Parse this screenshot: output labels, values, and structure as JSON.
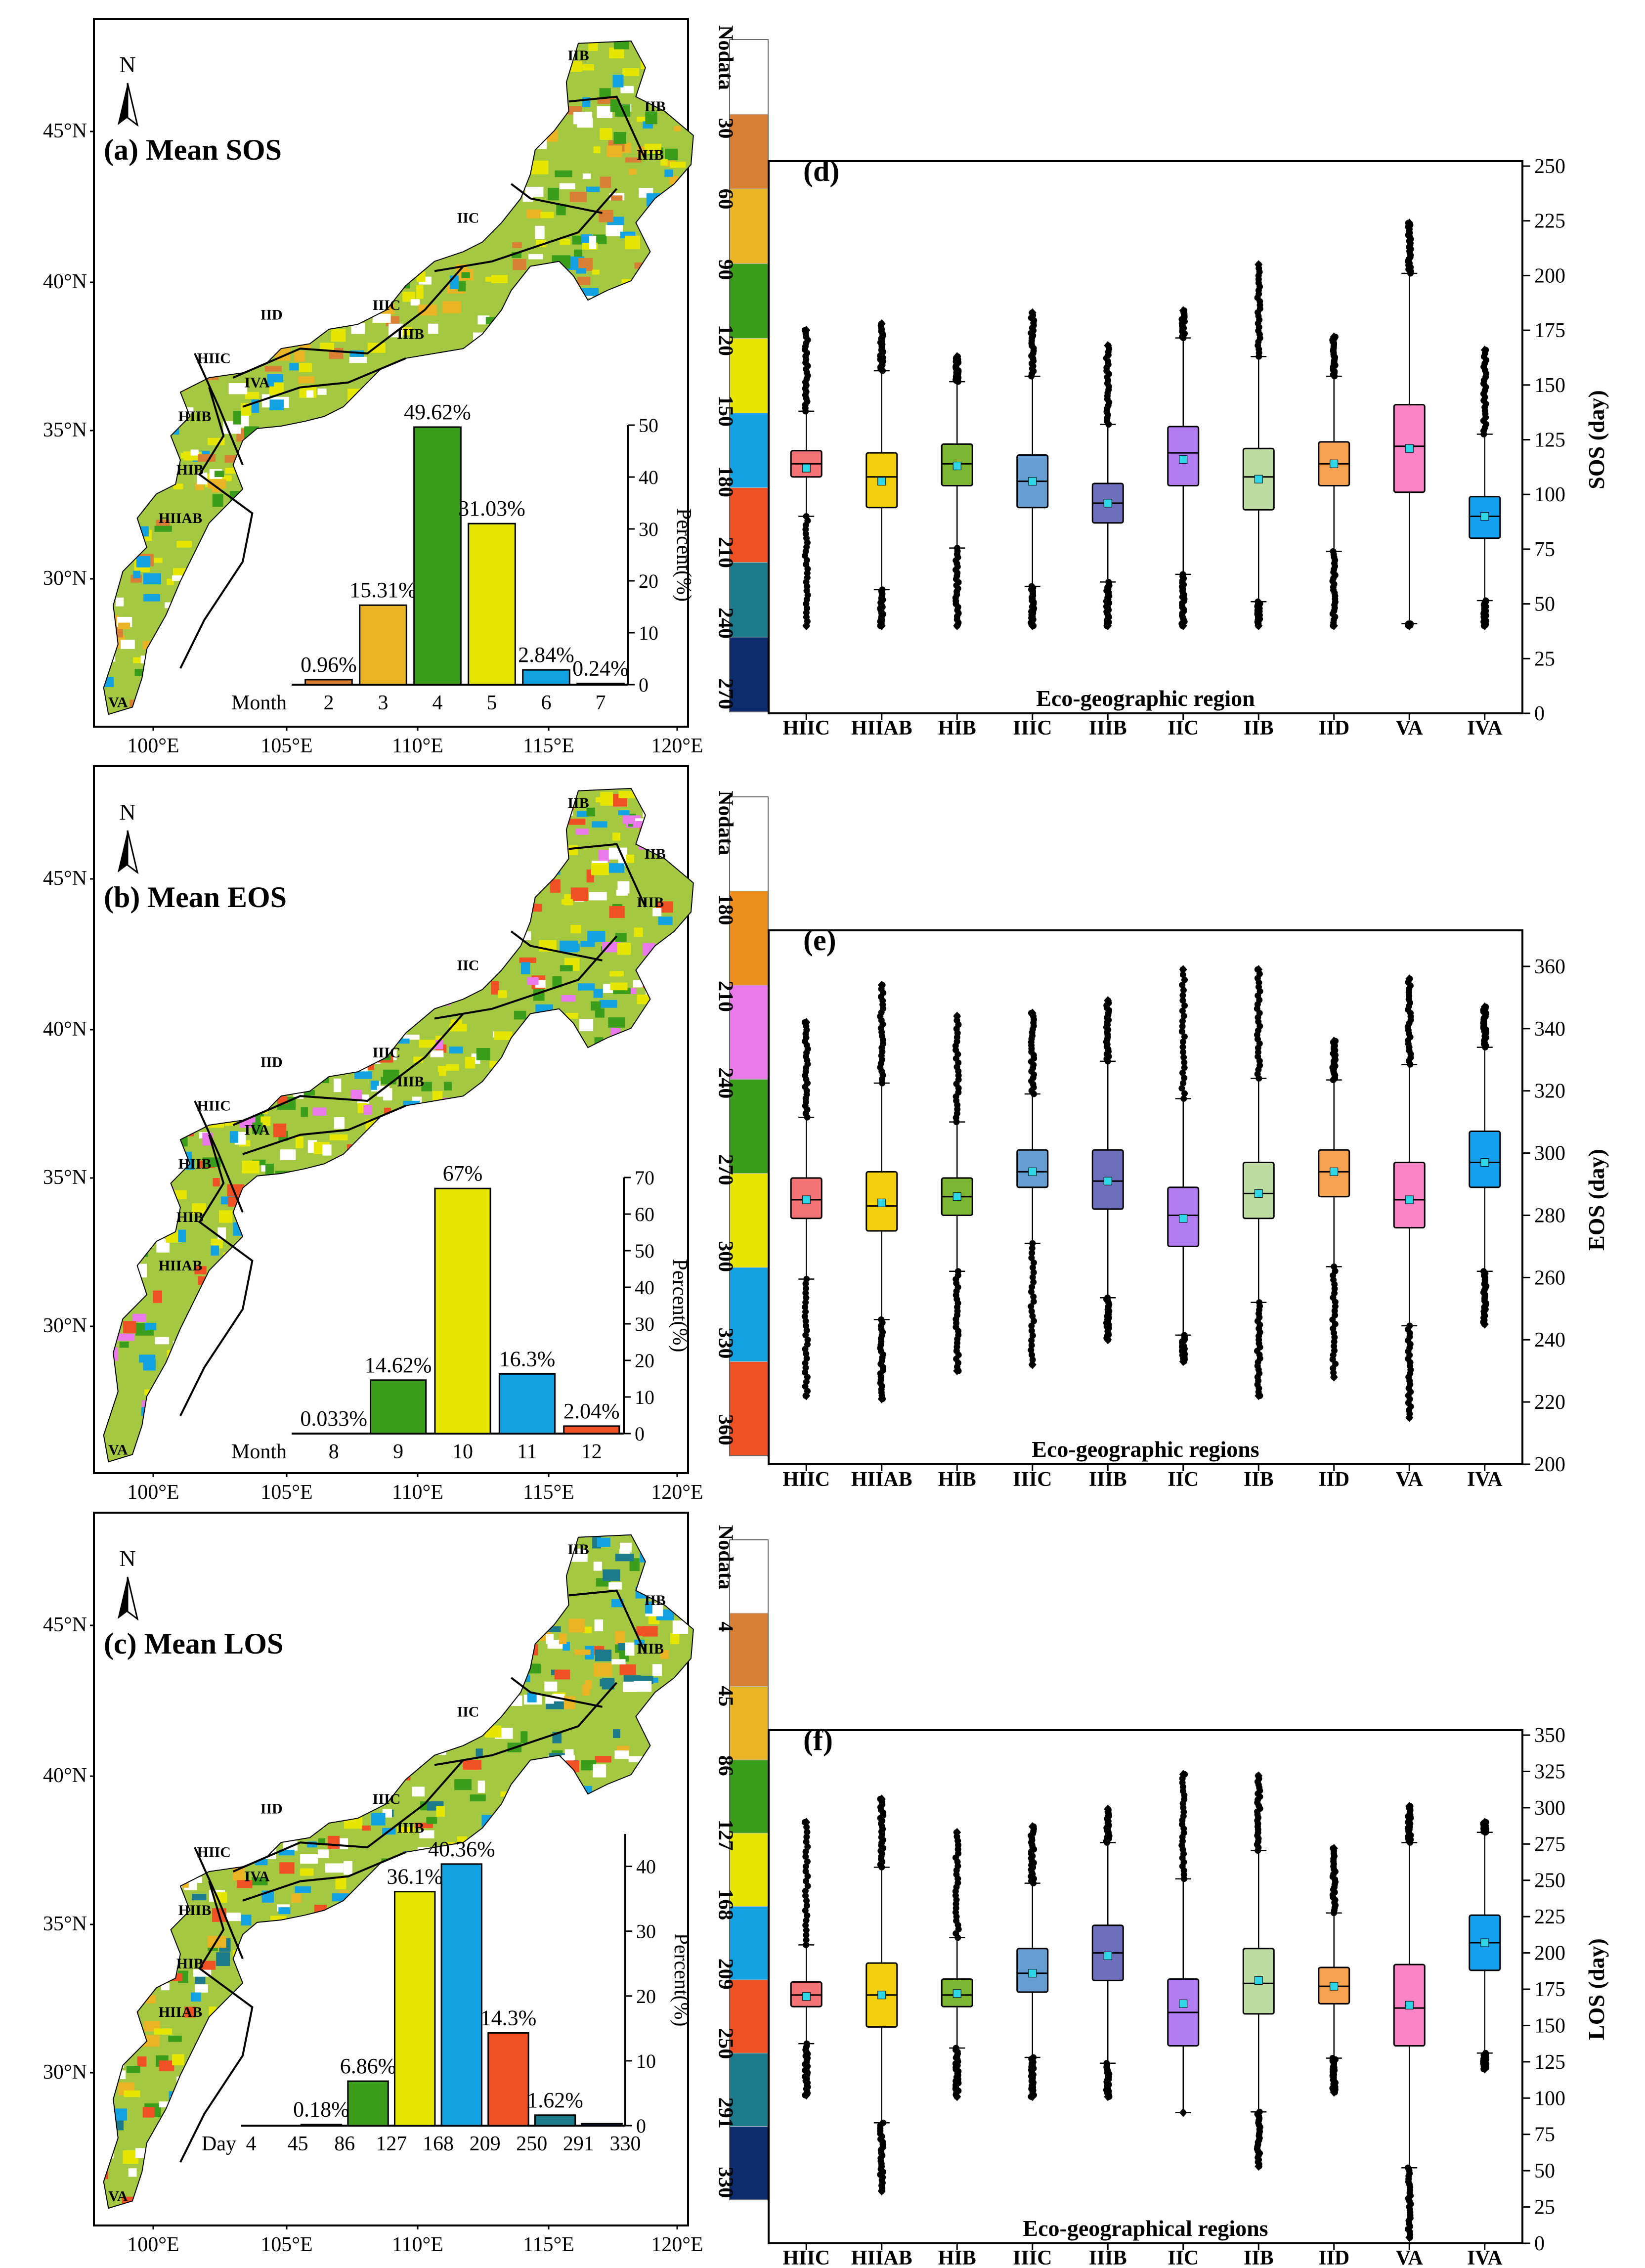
{
  "colors": {
    "orange": "#d97f33",
    "amber": "#eab424",
    "green": "#3a9d1c",
    "yellow": "#e5e602",
    "cyan": "#12a2e1",
    "red": "#f05124",
    "teal": "#1d7a8b",
    "navy": "#0d2c6e",
    "violet": "#ea7ae9",
    "gold": "#ee8e1d",
    "white": "#ffffff"
  },
  "panels": [
    {
      "key": "a",
      "title": "(a) Mean SOS",
      "lat_labels": [
        "45°N",
        "40°N",
        "35°N",
        "30°N"
      ],
      "lon_labels": [
        "100°E",
        "105°E",
        "110°E",
        "115°E",
        "120°E"
      ],
      "north": "N",
      "region_labels": [
        "IIB",
        "IIB",
        "IIIB",
        "IIC",
        "IID",
        "IIIC",
        "IIIB",
        "HIIC",
        "IVA",
        "HIIB",
        "HIB",
        "HIIAB",
        "VA"
      ],
      "legend": {
        "labels": [
          "Nodata",
          "30",
          "60",
          "90",
          "120",
          "150",
          "180",
          "210",
          "240",
          "270"
        ],
        "colors": [
          "#ffffff",
          "#d97f33",
          "#eab424",
          "#3a9d1c",
          "#e5e602",
          "#12a2e1",
          "#f05124",
          "#1d7a8b",
          "#0d2c6e"
        ]
      },
      "inset": {
        "type": "bar",
        "axis_prefix": "Month",
        "categories": [
          "2",
          "3",
          "4",
          "5",
          "6",
          "7"
        ],
        "values": [
          0.96,
          15.31,
          49.62,
          31.03,
          2.84,
          0.24
        ],
        "value_labels": [
          "0.96%",
          "15.31%",
          "49.62%",
          "31.03%",
          "2.84%",
          "0.24%"
        ],
        "colors": [
          "#d97f33",
          "#eab424",
          "#3a9d1c",
          "#e5e602",
          "#12a2e1",
          "#f05124"
        ],
        "ylabel": "Percent(%)",
        "ylim": [
          0,
          50
        ],
        "yticks": [
          "0",
          "10",
          "20",
          "30",
          "40",
          "50"
        ]
      }
    },
    {
      "key": "b",
      "title": "(b) Mean EOS",
      "lat_labels": [
        "45°N",
        "40°N",
        "35°N",
        "30°N"
      ],
      "lon_labels": [
        "100°E",
        "105°E",
        "110°E",
        "115°E",
        "120°E"
      ],
      "north": "N",
      "region_labels": [
        "IIB",
        "IIB",
        "IIIB",
        "IIC",
        "IID",
        "IIIC",
        "IIIB",
        "HIIC",
        "IVA",
        "HIIB",
        "HIB",
        "HIIAB",
        "VA"
      ],
      "legend": {
        "labels": [
          "Nodata",
          "180",
          "210",
          "240",
          "270",
          "300",
          "330",
          "360"
        ],
        "colors": [
          "#ffffff",
          "#ee8e1d",
          "#ea7ae9",
          "#3a9d1c",
          "#e5e602",
          "#12a2e1",
          "#f05124"
        ]
      },
      "inset": {
        "type": "bar",
        "axis_prefix": "Month",
        "categories": [
          "8",
          "9",
          "10",
          "11",
          "12"
        ],
        "values": [
          0.033,
          14.62,
          67,
          16.3,
          2.04
        ],
        "value_labels": [
          "0.033%",
          "14.62%",
          "67%",
          "16.3%",
          "2.04%"
        ],
        "colors": [
          "#ee8e1d",
          "#3a9d1c",
          "#e5e602",
          "#12a2e1",
          "#f05124"
        ],
        "ylabel": "Percent(%)",
        "ylim": [
          0,
          70
        ],
        "yticks": [
          "0",
          "10",
          "20",
          "30",
          "40",
          "50",
          "60",
          "70"
        ]
      }
    },
    {
      "key": "c",
      "title": "(c) Mean LOS",
      "lat_labels": [
        "45°N",
        "40°N",
        "35°N",
        "30°N"
      ],
      "lon_labels": [
        "100°E",
        "105°E",
        "110°E",
        "115°E",
        "120°E"
      ],
      "north": "N",
      "region_labels": [
        "IIB",
        "IIB",
        "IIIB",
        "IIC",
        "IID",
        "IIIC",
        "IIIB",
        "HIIC",
        "IVA",
        "HIIB",
        "HIB",
        "HIIAB",
        "VA"
      ],
      "legend": {
        "labels": [
          "Nodata",
          "4",
          "45",
          "86",
          "127",
          "168",
          "209",
          "250",
          "291",
          "330"
        ],
        "colors": [
          "#ffffff",
          "#d97f33",
          "#eab424",
          "#3a9d1c",
          "#e5e602",
          "#12a2e1",
          "#f05124",
          "#1d7a8b",
          "#0d2c6e"
        ]
      },
      "inset": {
        "type": "bar",
        "axis_prefix": "Day",
        "tick_labels": [
          "4",
          "45",
          "86",
          "127",
          "168",
          "209",
          "250",
          "291",
          "330"
        ],
        "categories": [
          "4-45",
          "45-86",
          "86-127",
          "127-168",
          "168-209",
          "209-250",
          "250-291",
          "291-330"
        ],
        "values": [
          0,
          0.18,
          6.86,
          36.1,
          40.36,
          14.3,
          1.62,
          0.3
        ],
        "value_labels": [
          "",
          "0.18%",
          "6.86%",
          "36.1%",
          "40.36%",
          "14.3%",
          "1.62%",
          ""
        ],
        "colors": [
          "#d97f33",
          "#eab424",
          "#3a9d1c",
          "#e5e602",
          "#12a2e1",
          "#f05124",
          "#1d7a8b",
          "#0d2c6e"
        ],
        "ylabel": "Percent(%)",
        "ylim": [
          0,
          45
        ],
        "yticks": [
          "0",
          "10",
          "20",
          "30",
          "40"
        ]
      }
    }
  ],
  "chart_data": [
    {
      "key": "d",
      "type": "box",
      "panel_label": "(d)",
      "xlabel": "Eco-geographic region",
      "ylabel": "SOS (day)",
      "ylim": [
        0,
        250
      ],
      "yticks": [
        "0",
        "25",
        "50",
        "75",
        "100",
        "125",
        "150",
        "175",
        "200",
        "225",
        "250"
      ],
      "categories": [
        "HIIC",
        "HIIAB",
        "HIB",
        "IIIC",
        "IIIB",
        "IIC",
        "IIB",
        "IID",
        "VA",
        "IVA"
      ],
      "colors": [
        "#f47477",
        "#f2d00c",
        "#7db632",
        "#679ed2",
        "#6e6fbc",
        "#b17cf0",
        "#bcdca1",
        "#f6a252",
        "#f984c6",
        "#149ff0"
      ],
      "stats": [
        {
          "min": 40,
          "q1": 108,
          "median": 114,
          "q3": 120,
          "max": 175,
          "mean": 112
        },
        {
          "min": 40,
          "q1": 94,
          "median": 108,
          "q3": 119,
          "max": 178,
          "mean": 106
        },
        {
          "min": 40,
          "q1": 104,
          "median": 114,
          "q3": 123,
          "max": 163,
          "mean": 113
        },
        {
          "min": 40,
          "q1": 94,
          "median": 106,
          "q3": 118,
          "max": 183,
          "mean": 106
        },
        {
          "min": 40,
          "q1": 87,
          "median": 96,
          "q3": 105,
          "max": 168,
          "mean": 96
        },
        {
          "min": 40,
          "q1": 104,
          "median": 119,
          "q3": 131,
          "max": 184,
          "mean": 116
        },
        {
          "min": 40,
          "q1": 93,
          "median": 108,
          "q3": 121,
          "max": 205,
          "mean": 107
        },
        {
          "min": 40,
          "q1": 104,
          "median": 114,
          "q3": 124,
          "max": 172,
          "mean": 114
        },
        {
          "min": 40,
          "q1": 101,
          "median": 122,
          "q3": 141,
          "max": 224,
          "mean": 121
        },
        {
          "min": 40,
          "q1": 80,
          "median": 90,
          "q3": 99,
          "max": 166,
          "mean": 90
        }
      ]
    },
    {
      "key": "e",
      "type": "box",
      "panel_label": "(e)",
      "xlabel": "Eco-geographic regions",
      "ylabel": "EOS (day)",
      "ylim": [
        200,
        370
      ],
      "yticks": [
        "200",
        "220",
        "240",
        "260",
        "280",
        "300",
        "320",
        "340",
        "360"
      ],
      "categories": [
        "HIIC",
        "HIIAB",
        "HIB",
        "IIIC",
        "IIIB",
        "IIC",
        "IIB",
        "IID",
        "VA",
        "IVA"
      ],
      "colors": [
        "#f47477",
        "#f2d00c",
        "#7db632",
        "#679ed2",
        "#6e6fbc",
        "#b17cf0",
        "#bcdca1",
        "#f6a252",
        "#f984c6",
        "#149ff0"
      ],
      "stats": [
        {
          "min": 222,
          "q1": 279,
          "median": 285,
          "q3": 292,
          "max": 342,
          "mean": 285
        },
        {
          "min": 221,
          "q1": 275,
          "median": 283,
          "q3": 294,
          "max": 354,
          "mean": 284
        },
        {
          "min": 230,
          "q1": 280,
          "median": 286,
          "q3": 292,
          "max": 344,
          "mean": 286
        },
        {
          "min": 232,
          "q1": 289,
          "median": 294,
          "q3": 301,
          "max": 345,
          "mean": 294
        },
        {
          "min": 240,
          "q1": 282,
          "median": 291,
          "q3": 301,
          "max": 349,
          "mean": 291
        },
        {
          "min": 233,
          "q1": 270,
          "median": 280,
          "q3": 289,
          "max": 359,
          "mean": 279
        },
        {
          "min": 222,
          "q1": 279,
          "median": 287,
          "q3": 297,
          "max": 359,
          "mean": 287
        },
        {
          "min": 228,
          "q1": 286,
          "median": 294,
          "q3": 301,
          "max": 336,
          "mean": 294
        },
        {
          "min": 215,
          "q1": 276,
          "median": 285,
          "q3": 297,
          "max": 356,
          "mean": 285
        },
        {
          "min": 245,
          "q1": 289,
          "median": 297,
          "q3": 307,
          "max": 347,
          "mean": 297
        }
      ]
    },
    {
      "key": "f",
      "type": "box",
      "panel_label": "(f)",
      "xlabel": "Eco-geographical regions",
      "ylabel": "LOS (day)",
      "ylim": [
        0,
        350
      ],
      "yticks": [
        "0",
        "25",
        "50",
        "75",
        "100",
        "125",
        "150",
        "175",
        "200",
        "225",
        "250",
        "275",
        "300",
        "325",
        "350"
      ],
      "categories": [
        "HIIC",
        "HIIAB",
        "HIB",
        "IIIC",
        "IIIB",
        "IIC",
        "IIB",
        "IID",
        "VA",
        "IVA"
      ],
      "colors": [
        "#f47477",
        "#f2d00c",
        "#7db632",
        "#679ed2",
        "#6e6fbc",
        "#b17cf0",
        "#bcdca1",
        "#f6a252",
        "#f984c6",
        "#149ff0"
      ],
      "stats": [
        {
          "min": 102,
          "q1": 163,
          "median": 171,
          "q3": 180,
          "max": 290,
          "mean": 170
        },
        {
          "min": 36,
          "q1": 149,
          "median": 171,
          "q3": 193,
          "max": 306,
          "mean": 171
        },
        {
          "min": 101,
          "q1": 163,
          "median": 171,
          "q3": 182,
          "max": 283,
          "mean": 172
        },
        {
          "min": 101,
          "q1": 173,
          "median": 186,
          "q3": 203,
          "max": 287,
          "mean": 186
        },
        {
          "min": 101,
          "q1": 181,
          "median": 200,
          "q3": 219,
          "max": 299,
          "mean": 198
        },
        {
          "min": 90,
          "q1": 136,
          "median": 159,
          "q3": 182,
          "max": 323,
          "mean": 165
        },
        {
          "min": 53,
          "q1": 158,
          "median": 179,
          "q3": 203,
          "max": 322,
          "mean": 181
        },
        {
          "min": 104,
          "q1": 165,
          "median": 177,
          "q3": 190,
          "max": 272,
          "mean": 177
        },
        {
          "min": 4,
          "q1": 136,
          "median": 162,
          "q3": 192,
          "max": 301,
          "mean": 164
        },
        {
          "min": 120,
          "q1": 188,
          "median": 207,
          "q3": 226,
          "max": 290,
          "mean": 207
        }
      ]
    }
  ]
}
